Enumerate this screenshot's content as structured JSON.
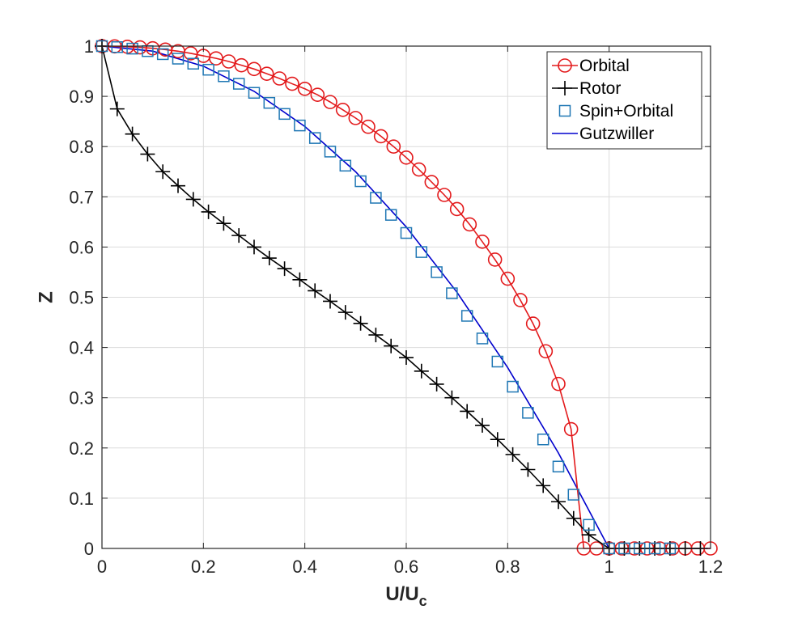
{
  "chart_data": {
    "type": "line",
    "title": "",
    "xlabel": "U/U",
    "xlabel_sub": "c",
    "ylabel": "Z",
    "xlim": [
      0,
      1.2
    ],
    "ylim": [
      0,
      1
    ],
    "grid": true,
    "legend_position": "top-right",
    "xticks": [
      0,
      0.2,
      0.4,
      0.6,
      0.8,
      1,
      1.2
    ],
    "xtick_labels": [
      "0",
      "0.2",
      "0.4",
      "0.6",
      "0.8",
      "1",
      "1.2"
    ],
    "yticks": [
      0,
      0.1,
      0.2,
      0.3,
      0.4,
      0.5,
      0.6,
      0.7,
      0.8,
      0.9,
      1
    ],
    "ytick_labels": [
      "0",
      "0.1",
      "0.2",
      "0.3",
      "0.4",
      "0.5",
      "0.6",
      "0.7",
      "0.8",
      "0.9",
      "1"
    ],
    "series": [
      {
        "name": "Orbital",
        "color": "#e31a1c",
        "marker": "circle",
        "line": true,
        "x": [
          0,
          0.025,
          0.05,
          0.075,
          0.1,
          0.125,
          0.15,
          0.175,
          0.2,
          0.225,
          0.25,
          0.275,
          0.3,
          0.325,
          0.35,
          0.375,
          0.4,
          0.425,
          0.45,
          0.475,
          0.5,
          0.525,
          0.55,
          0.575,
          0.6,
          0.625,
          0.65,
          0.675,
          0.7,
          0.725,
          0.75,
          0.775,
          0.8,
          0.825,
          0.85,
          0.875,
          0.9,
          0.925,
          0.95,
          0.975,
          1,
          1.025,
          1.05,
          1.075,
          1.1,
          1.125,
          1.15,
          1.175,
          1.2
        ],
        "y": [
          1,
          0.9995,
          0.9987,
          0.9975,
          0.9956,
          0.9931,
          0.9899,
          0.9856,
          0.9806,
          0.9756,
          0.9694,
          0.9619,
          0.9544,
          0.945,
          0.9356,
          0.925,
          0.915,
          0.9031,
          0.8887,
          0.8731,
          0.8569,
          0.8394,
          0.8206,
          0.8,
          0.7781,
          0.7544,
          0.7294,
          0.7037,
          0.6756,
          0.645,
          0.6106,
          0.575,
          0.5369,
          0.4944,
          0.4475,
          0.3925,
          0.3275,
          0.2375,
          0,
          0,
          0,
          0,
          0,
          0,
          0,
          0,
          0,
          0,
          0
        ]
      },
      {
        "name": "Rotor",
        "color": "#000000",
        "marker": "plus",
        "line": true,
        "x": [
          0,
          0.03,
          0.06,
          0.09,
          0.12,
          0.15,
          0.18,
          0.21,
          0.24,
          0.27,
          0.3,
          0.33,
          0.36,
          0.39,
          0.42,
          0.45,
          0.48,
          0.51,
          0.54,
          0.57,
          0.6,
          0.63,
          0.66,
          0.69,
          0.72,
          0.75,
          0.78,
          0.81,
          0.84,
          0.87,
          0.9,
          0.93,
          0.96,
          1,
          1.03,
          1.06,
          1.09,
          1.12,
          1.15,
          1.18
        ],
        "y": [
          1,
          0.875,
          0.825,
          0.785,
          0.75,
          0.722,
          0.695,
          0.67,
          0.647,
          0.623,
          0.6,
          0.578,
          0.557,
          0.535,
          0.513,
          0.492,
          0.47,
          0.448,
          0.425,
          0.403,
          0.38,
          0.353,
          0.327,
          0.3,
          0.273,
          0.245,
          0.217,
          0.187,
          0.157,
          0.125,
          0.093,
          0.06,
          0.027,
          0,
          0,
          0,
          0,
          0,
          0,
          0
        ]
      },
      {
        "name": "Spin+Orbital",
        "color": "#1f77b4",
        "marker": "square",
        "line": false,
        "x": [
          0,
          0.03,
          0.06,
          0.09,
          0.12,
          0.15,
          0.18,
          0.21,
          0.24,
          0.27,
          0.3,
          0.33,
          0.36,
          0.39,
          0.42,
          0.45,
          0.48,
          0.51,
          0.54,
          0.57,
          0.6,
          0.63,
          0.66,
          0.69,
          0.72,
          0.75,
          0.78,
          0.81,
          0.84,
          0.87,
          0.9,
          0.93,
          0.96,
          1,
          1.03,
          1.06,
          1.09,
          1.12
        ],
        "y": [
          1,
          0.998,
          0.995,
          0.99,
          0.984,
          0.975,
          0.965,
          0.953,
          0.94,
          0.925,
          0.907,
          0.887,
          0.865,
          0.842,
          0.817,
          0.79,
          0.762,
          0.731,
          0.698,
          0.664,
          0.628,
          0.59,
          0.55,
          0.508,
          0.463,
          0.418,
          0.372,
          0.322,
          0.27,
          0.217,
          0.163,
          0.107,
          0.047,
          0,
          0,
          0,
          0,
          0
        ]
      },
      {
        "name": "Gutzwiller",
        "color": "#0000cd",
        "marker": "none",
        "line": true,
        "x": [
          0,
          0.1,
          0.2,
          0.3,
          0.4,
          0.5,
          0.6,
          0.7,
          0.8,
          0.9,
          1,
          1.2
        ],
        "y": [
          1,
          0.99,
          0.96,
          0.91,
          0.84,
          0.75,
          0.64,
          0.51,
          0.36,
          0.19,
          0,
          0
        ]
      }
    ]
  }
}
